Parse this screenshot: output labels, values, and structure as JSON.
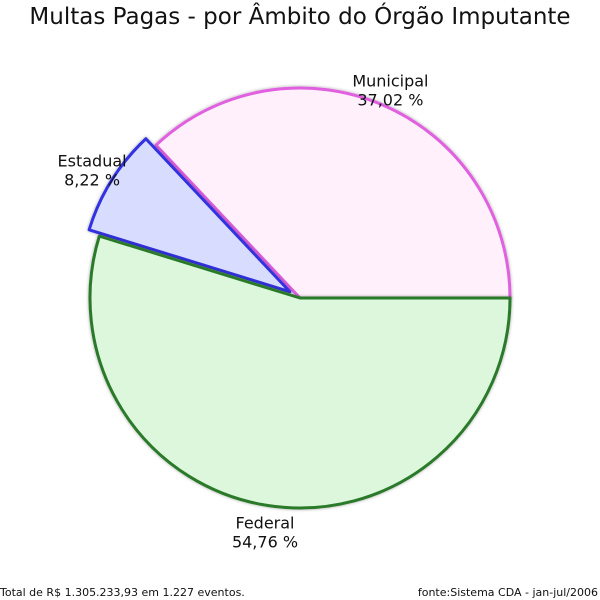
{
  "chart_data": {
    "type": "pie",
    "title": "Multas Pagas - por Âmbito do Órgão Imputante",
    "slices": [
      {
        "label": "Municipal",
        "percent_label": "37,02 %",
        "value": 37.02,
        "fill": "#fff0fc",
        "stroke": "#e060e0"
      },
      {
        "label": "Estadual",
        "percent_label": "8,22 %",
        "value": 8.22,
        "fill": "#d8dcff",
        "stroke": "#3030e0"
      },
      {
        "label": "Federal",
        "percent_label": "54,76 %",
        "value": 54.76,
        "fill": "#dcf7dc",
        "stroke": "#2a7a2a"
      }
    ]
  },
  "footer": {
    "total_text": "Total de R$ 1.305.233,93 em 1.227 eventos.",
    "source_text": "fonte:Sistema CDA - jan-jul/2006"
  }
}
